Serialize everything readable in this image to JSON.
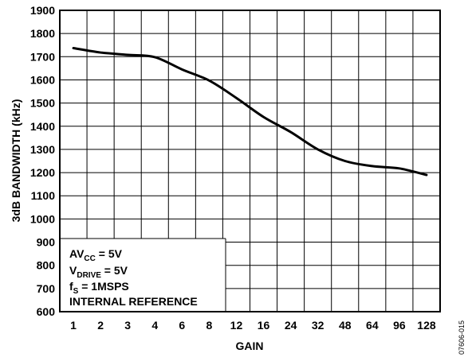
{
  "chart_data": {
    "type": "line",
    "categories": [
      "1",
      "2",
      "3",
      "4",
      "6",
      "8",
      "12",
      "16",
      "24",
      "32",
      "48",
      "64",
      "96",
      "128"
    ],
    "series": [
      {
        "values": [
          1737,
          1718,
          1708,
          1698,
          1645,
          1597,
          1522,
          1440,
          1375,
          1300,
          1250,
          1228,
          1218,
          1190
        ]
      }
    ],
    "xlabel": "GAIN",
    "ylabel": "3dB BANDWIDTH (kHz)",
    "ylim": [
      600,
      1900
    ],
    "yticks": [
      "600",
      "700",
      "800",
      "900",
      "1000",
      "1100",
      "1200",
      "1300",
      "1400",
      "1500",
      "1600",
      "1700",
      "1800",
      "1900"
    ],
    "grid": true,
    "line_color": "#000000",
    "legend_lines": [
      {
        "main": "AV",
        "sub": "CC",
        "rest": " = 5V"
      },
      {
        "main": "V",
        "sub": "DRIVE",
        "rest": " = 5V"
      },
      {
        "main": "f",
        "sub": "S",
        "rest": " = 1MSPS"
      },
      {
        "main": "INTERNAL REFERENCE",
        "sub": "",
        "rest": ""
      }
    ],
    "figure_id": "07606-015"
  }
}
